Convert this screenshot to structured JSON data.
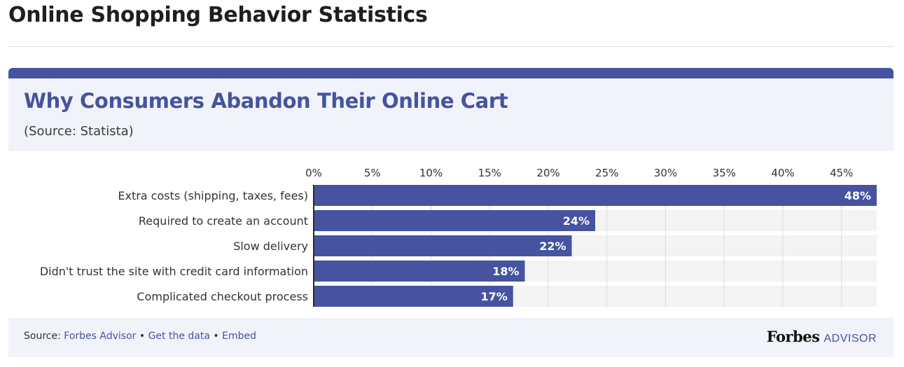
{
  "page": {
    "title": "Online Shopping Behavior Statistics"
  },
  "card": {
    "title": "Why Consumers Abandon Their Online Cart",
    "subtitle": "(Source: Statista)"
  },
  "footer": {
    "source_prefix": "Source: ",
    "source_link": "Forbes Advisor",
    "sep1": " • ",
    "get_data": "Get the data",
    "sep2": " • ",
    "embed": "Embed",
    "brand_forbes": "Forbes",
    "brand_advisor": "ADVISOR"
  },
  "colors": {
    "bar": "#4653a0",
    "track": "#f3f3f3",
    "header_bg": "#f0f3f9",
    "title": "#4653a0"
  },
  "chart_data": {
    "type": "bar",
    "orientation": "horizontal",
    "categories": [
      "Extra costs (shipping, taxes, fees)",
      "Required to create an account",
      "Slow delivery",
      "Didn't trust the site with credit card information",
      "Complicated checkout process"
    ],
    "values": [
      48,
      24,
      22,
      18,
      17
    ],
    "value_labels": [
      "48%",
      "24%",
      "22%",
      "18%",
      "17%"
    ],
    "x_ticks": [
      "0%",
      "5%",
      "10%",
      "15%",
      "20%",
      "25%",
      "30%",
      "35%",
      "40%",
      "45%"
    ],
    "xlim": [
      0,
      48
    ],
    "grid": true,
    "legend": "none"
  }
}
